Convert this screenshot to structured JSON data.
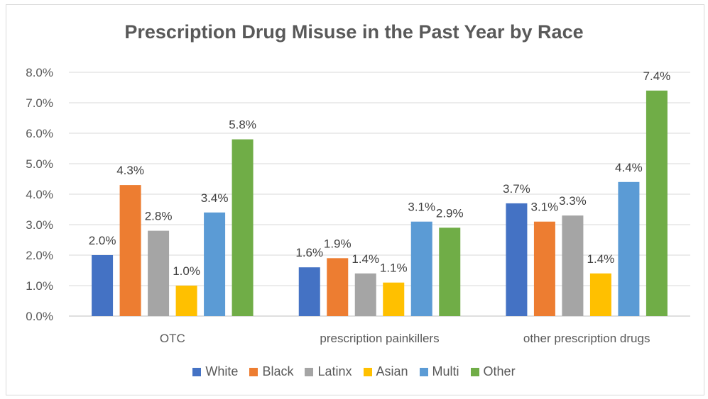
{
  "chart_data": {
    "type": "bar",
    "title": "Prescription Drug Misuse in the Past Year by Race",
    "categories": [
      "OTC",
      "prescription painkillers",
      "other prescription drugs"
    ],
    "y_ticks": [
      "0.0%",
      "1.0%",
      "2.0%",
      "3.0%",
      "4.0%",
      "5.0%",
      "6.0%",
      "7.0%",
      "8.0%"
    ],
    "ylim": [
      0,
      8
    ],
    "grid": true,
    "legend_position": "bottom",
    "series": [
      {
        "name": "White",
        "color": "#4472c4",
        "values": [
          2.0,
          1.6,
          3.7
        ],
        "labels": [
          "2.0%",
          "1.6%",
          "3.7%"
        ]
      },
      {
        "name": "Black",
        "color": "#ed7d31",
        "values": [
          4.3,
          1.9,
          3.1
        ],
        "labels": [
          "4.3%",
          "1.9%",
          "3.1%"
        ]
      },
      {
        "name": "Latinx",
        "color": "#a5a5a5",
        "values": [
          2.8,
          1.4,
          3.3
        ],
        "labels": [
          "2.8%",
          "1.4%",
          "3.3%"
        ]
      },
      {
        "name": "Asian",
        "color": "#ffc000",
        "values": [
          1.0,
          1.1,
          1.4
        ],
        "labels": [
          "1.0%",
          "1.1%",
          "1.4%"
        ]
      },
      {
        "name": "Multi",
        "color": "#5b9bd5",
        "values": [
          3.4,
          3.1,
          4.4
        ],
        "labels": [
          "3.4%",
          "3.1%",
          "4.4%"
        ]
      },
      {
        "name": "Other",
        "color": "#70ad47",
        "values": [
          5.8,
          2.9,
          7.4
        ],
        "labels": [
          "5.8%",
          "2.9%",
          "7.4%"
        ]
      }
    ]
  }
}
